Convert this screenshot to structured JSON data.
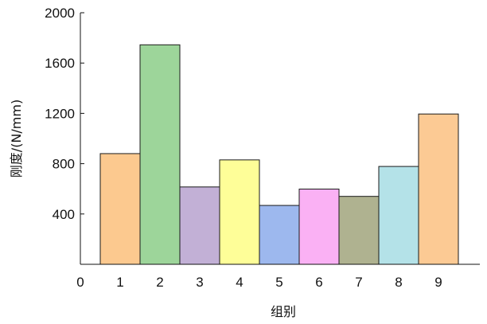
{
  "chart_data": {
    "type": "bar",
    "categories": [
      "1",
      "2",
      "3",
      "4",
      "5",
      "6",
      "7",
      "8",
      "9"
    ],
    "values": [
      880,
      1745,
      615,
      830,
      468,
      598,
      540,
      778,
      1195
    ],
    "colors": [
      "#fcc98f",
      "#9dd59a",
      "#c2b0d6",
      "#fefe98",
      "#9db8ee",
      "#fab1f4",
      "#afb290",
      "#b4e2e8",
      "#fcca94"
    ],
    "ylim": [
      0,
      2000
    ],
    "y_ticks": [
      "2000",
      "1600",
      "1200",
      "800",
      "400"
    ],
    "x_origin_label": "0",
    "xlabel": "组别",
    "ylabel": "刚度/(N/mm)",
    "grid": false,
    "legend": "none"
  }
}
